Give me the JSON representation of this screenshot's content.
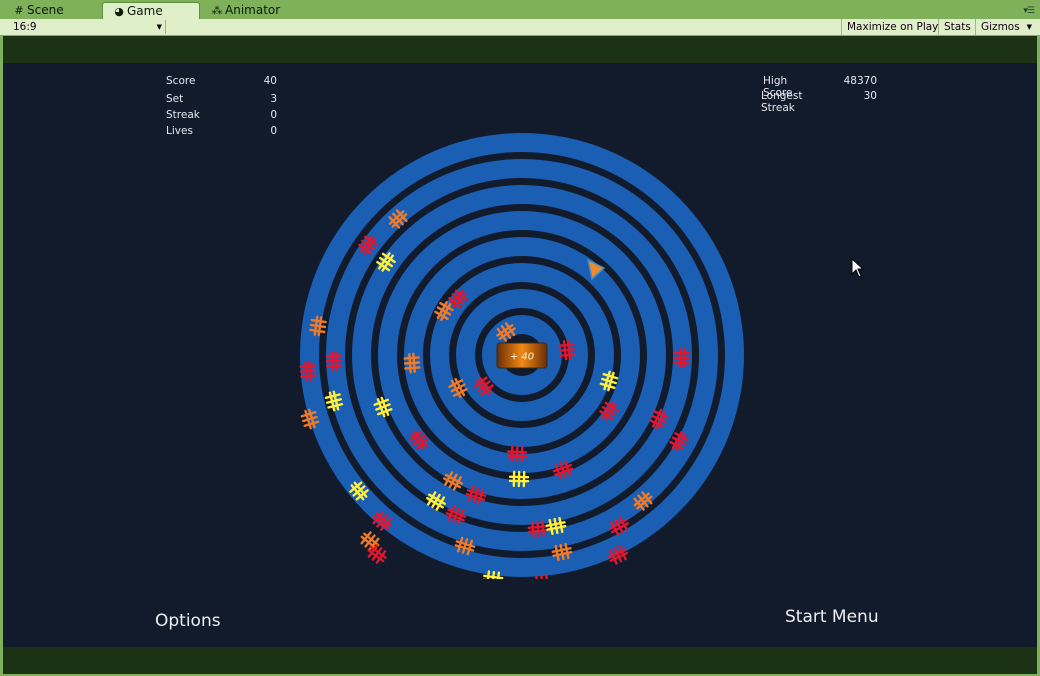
{
  "tabs": [
    {
      "label": "Scene",
      "icon": "grid-icon"
    },
    {
      "label": "Game",
      "icon": "pacman-icon"
    },
    {
      "label": "Animator",
      "icon": "animator-icon"
    }
  ],
  "toolbar": {
    "aspect": "16:9",
    "maximize": "Maximize on Play",
    "stats": "Stats",
    "gizmos": "Gizmos"
  },
  "hud_left": [
    {
      "label": "Score",
      "value": "40"
    },
    {
      "label": "Set",
      "value": "3"
    },
    {
      "label": "Streak",
      "value": "0"
    },
    {
      "label": "Lives",
      "value": "0"
    }
  ],
  "hud_right": [
    {
      "label": "High Score",
      "value": "48370"
    },
    {
      "label": "Longest Streak",
      "value": "30"
    }
  ],
  "center_badge": "+ 40",
  "buttons": {
    "options": "Options",
    "start_menu": "Start Menu"
  },
  "colors": {
    "ring": "#1a5fb4",
    "gap": "#121b2c",
    "yellow": "#ffef3a",
    "orange": "#ef7a27",
    "red": "#e2162e"
  }
}
